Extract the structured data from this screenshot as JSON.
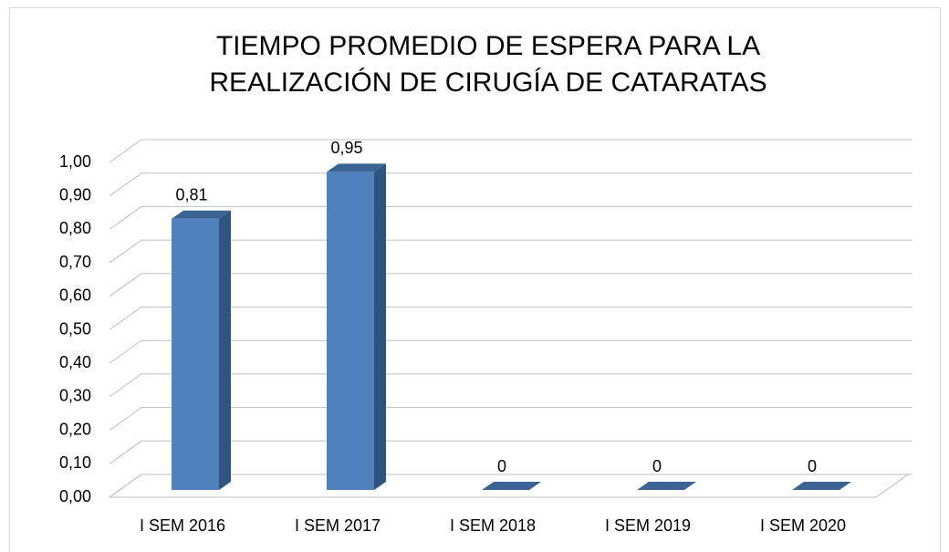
{
  "chart_data": {
    "type": "bar3d",
    "title": [
      "TIEMPO PROMEDIO DE ESPERA PARA LA",
      "REALIZACIÓN DE CIRUGÍA DE CATARATAS"
    ],
    "categories": [
      "I SEM 2016",
      "I SEM 2017",
      "I SEM 2018",
      "I SEM 2019",
      "I SEM 2020"
    ],
    "values": [
      0.81,
      0.95,
      0,
      0,
      0
    ],
    "value_labels": [
      "0,81",
      "0,95",
      "0",
      "0",
      "0"
    ],
    "color": "#4f81bd",
    "ylim": [
      0,
      1
    ],
    "yticks": [
      {
        "value": 0,
        "label": "0,00"
      },
      {
        "value": 0.1,
        "label": "0,10"
      },
      {
        "value": 0.2,
        "label": "0,20"
      },
      {
        "value": 0.3,
        "label": "0,30"
      },
      {
        "value": 0.4,
        "label": "0,40"
      },
      {
        "value": 0.5,
        "label": "0,50"
      },
      {
        "value": 0.6,
        "label": "0,60"
      },
      {
        "value": 0.7,
        "label": "0,70"
      },
      {
        "value": 0.8,
        "label": "0,80"
      },
      {
        "value": 0.9,
        "label": "0,90"
      },
      {
        "value": 1,
        "label": "1,00"
      }
    ],
    "grid": true
  }
}
